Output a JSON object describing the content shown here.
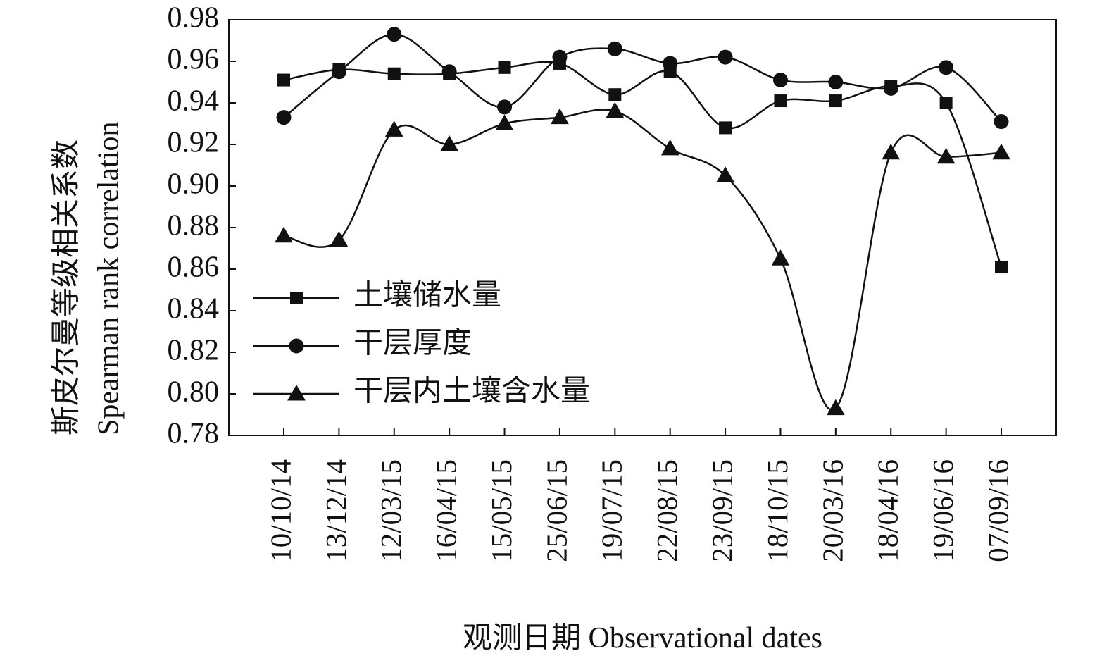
{
  "chart_data": {
    "type": "line",
    "title": "",
    "xlabel": "观测日期 Observational dates",
    "ylabel_cn": "斯皮尔曼等级相关系数",
    "ylabel_en": "Spearman rank correlation",
    "categories": [
      "10/10/14",
      "13/12/14",
      "12/03/15",
      "16/04/15",
      "15/05/15",
      "25/06/15",
      "19/07/15",
      "22/08/15",
      "23/09/15",
      "18/10/15",
      "20/03/16",
      "18/04/16",
      "19/06/16",
      "07/09/16"
    ],
    "ylim": [
      0.78,
      0.98
    ],
    "yticks": [
      "0.78",
      "0.80",
      "0.82",
      "0.84",
      "0.86",
      "0.88",
      "0.90",
      "0.92",
      "0.94",
      "0.96",
      "0.98"
    ],
    "series": [
      {
        "name": "土壤储水量",
        "marker": "square",
        "values": [
          0.951,
          0.956,
          0.954,
          0.954,
          0.957,
          0.959,
          0.944,
          0.955,
          0.928,
          0.941,
          0.941,
          0.948,
          0.94,
          0.861
        ]
      },
      {
        "name": "干层厚度",
        "marker": "circle",
        "values": [
          0.933,
          0.955,
          0.973,
          0.955,
          0.938,
          0.962,
          0.966,
          0.959,
          0.962,
          0.951,
          0.95,
          0.947,
          0.957,
          0.931
        ]
      },
      {
        "name": "干层内土壤含水量",
        "marker": "triangle",
        "values": [
          0.876,
          0.874,
          0.927,
          0.92,
          0.93,
          0.933,
          0.936,
          0.918,
          0.905,
          0.865,
          0.793,
          0.916,
          0.914,
          0.916
        ]
      }
    ],
    "legend_position": "left-center",
    "grid": false
  }
}
